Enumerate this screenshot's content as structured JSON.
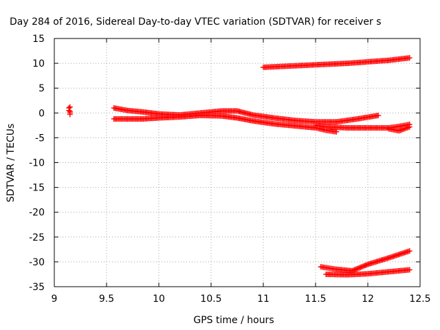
{
  "chart_data": {
    "type": "scatter",
    "title": "Day 284 of 2016, Sidereal Day-to-day VTEC variation (SDTVAR) for receiver s",
    "xlabel": "GPS time / hours",
    "ylabel": "SDTVAR / TECUs",
    "xlim": [
      9,
      12.5
    ],
    "ylim": [
      -35,
      15
    ],
    "xticks": [
      9,
      9.5,
      10,
      10.5,
      11,
      11.5,
      12,
      12.5
    ],
    "xtick_labels": [
      "9",
      "9.5",
      "10",
      "10.5",
      "11",
      "11.5",
      "12",
      "12.5"
    ],
    "yticks": [
      15,
      10,
      5,
      0,
      -5,
      -10,
      -15,
      -20,
      -25,
      -30,
      -35
    ],
    "ytick_labels": [
      "15",
      "10",
      "5",
      "0",
      "-5",
      "-10",
      "-15",
      "-20",
      "-25",
      "-30",
      "-35"
    ],
    "grid": true,
    "marker": "+",
    "color": "#ff0000",
    "series": [
      {
        "name": "isolated-cluster",
        "x": [
          9.14,
          9.14,
          9.15,
          9.15,
          9.15,
          9.15
        ],
        "y": [
          1.0,
          0.5,
          0.0,
          -0.3,
          1.2,
          0.3
        ]
      },
      {
        "name": "upper-track",
        "x": [
          11.0,
          11.2,
          11.4,
          11.6,
          11.8,
          12.0,
          12.2,
          12.4
        ],
        "y": [
          9.2,
          9.4,
          9.6,
          9.8,
          10.0,
          10.3,
          10.6,
          11.1
        ]
      },
      {
        "name": "main-track-a",
        "x": [
          9.57,
          9.7,
          9.85,
          10.0,
          10.2,
          10.4,
          10.6,
          10.75,
          10.9,
          11.1,
          11.3,
          11.5,
          11.7,
          11.9,
          12.1
        ],
        "y": [
          1.0,
          0.5,
          0.2,
          -0.2,
          -0.4,
          0.0,
          0.4,
          0.4,
          -0.4,
          -1.0,
          -1.5,
          -1.8,
          -1.8,
          -1.2,
          -0.5
        ]
      },
      {
        "name": "main-track-b",
        "x": [
          9.57,
          9.7,
          9.85,
          10.0,
          10.2,
          10.4,
          10.6,
          10.75,
          10.9,
          11.1,
          11.3,
          11.5,
          11.6,
          11.7
        ],
        "y": [
          -1.2,
          -1.2,
          -1.2,
          -1.0,
          -0.8,
          -0.5,
          -0.6,
          -1.0,
          -1.6,
          -2.2,
          -2.6,
          -3.0,
          -3.5,
          -3.8
        ]
      },
      {
        "name": "lower-branch",
        "x": [
          11.5,
          11.6,
          11.8,
          12.0,
          12.2,
          12.3,
          12.4
        ],
        "y": [
          -2.5,
          -2.8,
          -3.0,
          -3.0,
          -3.0,
          -2.7,
          -2.3
        ]
      },
      {
        "name": "right-hook",
        "x": [
          12.2,
          12.3,
          12.4
        ],
        "y": [
          -3.2,
          -3.6,
          -2.8
        ]
      },
      {
        "name": "bottom-track-upper",
        "x": [
          11.55,
          11.7,
          11.85,
          12.0,
          12.2,
          12.4
        ],
        "y": [
          -31.0,
          -31.5,
          -31.8,
          -30.5,
          -29.2,
          -27.8
        ]
      },
      {
        "name": "bottom-track-lower",
        "x": [
          11.6,
          11.8,
          12.0,
          12.2,
          12.4
        ],
        "y": [
          -32.5,
          -32.6,
          -32.4,
          -32.0,
          -31.6
        ]
      }
    ]
  }
}
